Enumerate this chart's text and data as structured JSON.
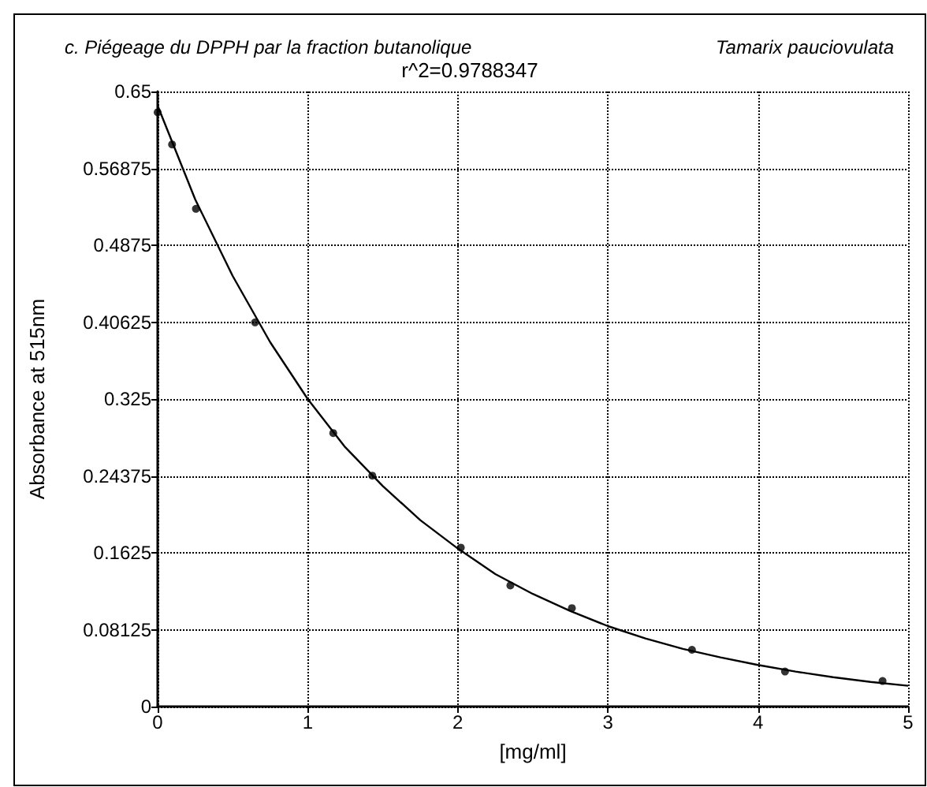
{
  "chart_data": {
    "type": "scatter",
    "title": "c. Piégeage du DPPH par la fraction butanolique",
    "subtitle": "Tamarix pauciovulata",
    "annotations": [
      "r^2=0.9788347"
    ],
    "xlabel": "[mg/ml]",
    "ylabel": "Absorbance at 515nm",
    "xlim": [
      0,
      5
    ],
    "xticks": [
      0,
      1,
      2,
      3,
      4,
      5
    ],
    "ylim": [
      0,
      0.65
    ],
    "yticks": [
      0,
      0.08125,
      0.1625,
      0.24375,
      0.325,
      0.40625,
      0.4875,
      0.56875,
      0.65
    ],
    "grid": true,
    "series": [
      {
        "marker": "circle",
        "color": "#000000",
        "x": [
          0,
          0.096,
          0.255,
          0.649,
          1.17,
          1.43,
          2.02,
          2.35,
          2.76,
          3.56,
          4.18,
          4.83
        ],
        "values": [
          0.628,
          0.594,
          0.526,
          0.406,
          0.289,
          0.244,
          0.168,
          0.128,
          0.104,
          0.06,
          0.037,
          0.027
        ]
      },
      {
        "type": "line",
        "marker": "none",
        "line_style": "solid",
        "color": "#000000",
        "x": [
          0,
          0.25,
          0.5,
          0.75,
          1,
          1.25,
          1.5,
          1.75,
          2,
          2.25,
          2.5,
          2.75,
          3,
          3.25,
          3.5,
          3.75,
          4,
          4.25,
          4.5,
          4.75,
          5
        ],
        "values": [
          0.635,
          0.536,
          0.455,
          0.385,
          0.325,
          0.274,
          0.233,
          0.197,
          0.167,
          0.14,
          0.119,
          0.101,
          0.085,
          0.072,
          0.061,
          0.052,
          0.044,
          0.037,
          0.031,
          0.026,
          0.022
        ]
      }
    ]
  }
}
